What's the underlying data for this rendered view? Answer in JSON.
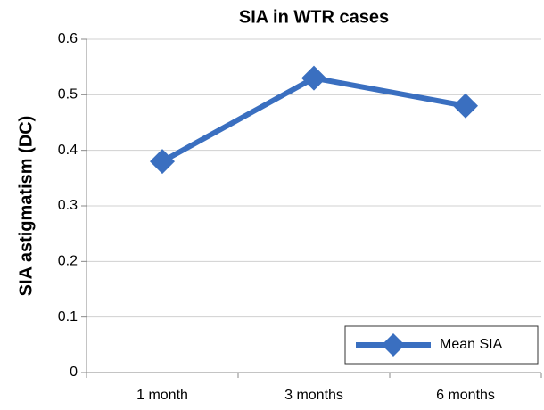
{
  "chart_data": {
    "type": "line",
    "title": "SIA in WTR cases",
    "y_label": "SIA astigmatism (DC)",
    "categories": [
      "1 month",
      "3 months",
      "6 months"
    ],
    "series": [
      {
        "name": "Mean SIA",
        "color": "#3a6fc0",
        "values": [
          0.38,
          0.53,
          0.48
        ]
      }
    ],
    "ylim": [
      0,
      0.6
    ],
    "yticks": [
      0,
      0.1,
      0.2,
      0.3,
      0.4,
      0.5,
      0.6
    ],
    "grid": true,
    "legend": "lower right"
  }
}
